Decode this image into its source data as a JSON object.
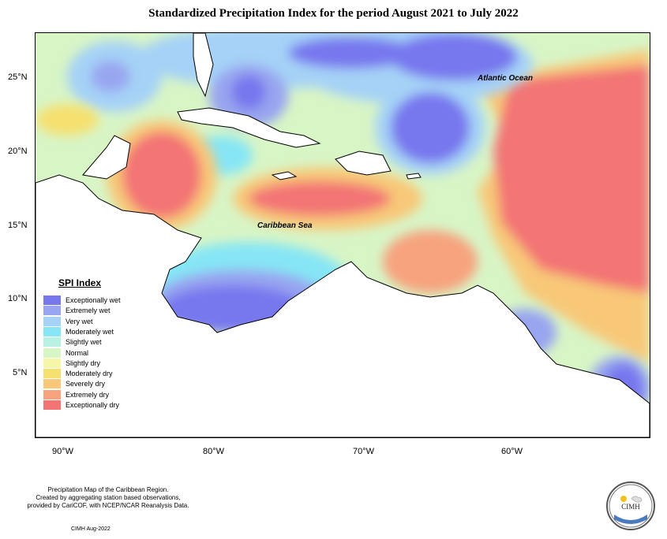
{
  "title": "Standardized Precipitation Index for the period August 2021 to July 2022",
  "axes": {
    "x_ticks": [
      "90°W",
      "80°W",
      "70°W",
      "60°W"
    ],
    "y_ticks": [
      "25°N",
      "20°N",
      "15°N",
      "10°N",
      "5°N"
    ]
  },
  "labels": {
    "atlantic": "Atlantic Ocean",
    "caribbean": "Caribbean Sea"
  },
  "legend": {
    "title": "SPI Index",
    "items": [
      {
        "label": "Exceptionally wet",
        "color": "#7777ee"
      },
      {
        "label": "Extremely wet",
        "color": "#98a5f0"
      },
      {
        "label": "Very wet",
        "color": "#a6d2f7"
      },
      {
        "label": "Moderately wet",
        "color": "#86e6f5"
      },
      {
        "label": "Slightly wet",
        "color": "#b8f0e2"
      },
      {
        "label": "Normal",
        "color": "#d8f5c6"
      },
      {
        "label": "Slightly dry",
        "color": "#f6f6a8"
      },
      {
        "label": "Moderately dry",
        "color": "#f6e070"
      },
      {
        "label": "Severely dry",
        "color": "#f8c878"
      },
      {
        "label": "Extremely dry",
        "color": "#f7a37e"
      },
      {
        "label": "Exceptionally dry",
        "color": "#f37474"
      }
    ]
  },
  "footer": {
    "line1": "Precipitation Map of the Caribbean Region.",
    "line2": "Created by aggregating station based observations,",
    "line3": "provided by CariCOF, with NCEP/NCAR Reanalysis Data.",
    "date": "CIMH Aug-2022"
  },
  "logo": {
    "text": "CIMH"
  }
}
